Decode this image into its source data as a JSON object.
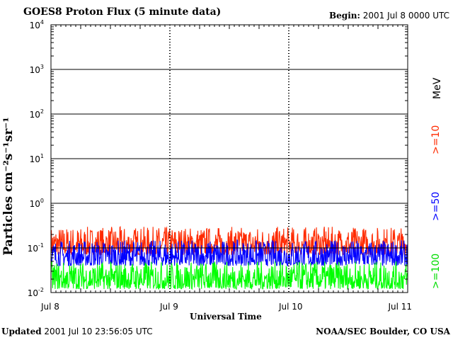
{
  "header": {
    "title": "GOES8 Proton Flux (5 minute data)",
    "begin_label": "Begin:",
    "begin_value": "2001 Jul 8 0000 UTC"
  },
  "footer": {
    "updated_label": "Updated",
    "updated_value": "2001 Jul 10 23:56:05 UTC",
    "credit": "NOAA/SEC Boulder, CO USA"
  },
  "chart_data": {
    "type": "line",
    "xlabel": "Universal Time",
    "ylabel": "Particles cm⁻²s⁻¹sr⁻¹",
    "y_scale": "log",
    "ylim": [
      0.01,
      10000
    ],
    "y_ticks": [
      {
        "base": "10",
        "exp": "4"
      },
      {
        "base": "10",
        "exp": "3"
      },
      {
        "base": "10",
        "exp": "2"
      },
      {
        "base": "10",
        "exp": "1"
      },
      {
        "base": "10",
        "exp": "0"
      },
      {
        "base": "10",
        "exp": "-1"
      },
      {
        "base": "10",
        "exp": "-2"
      }
    ],
    "x_ticks": [
      "Jul 8",
      "Jul 9",
      "Jul 10",
      "Jul 11"
    ],
    "xlim": [
      "2001-07-08",
      "2001-07-11"
    ],
    "grid": true,
    "legend_unit": "MeV",
    "series": [
      {
        "name": ">=10",
        "color": "#ff2a00",
        "typical_range": [
          0.07,
          0.3
        ]
      },
      {
        "name": ">=50",
        "color": "#0000ff",
        "typical_range": [
          0.04,
          0.15
        ]
      },
      {
        "name": ">=100",
        "color": "#00ff00",
        "typical_range": [
          0.012,
          0.05
        ]
      }
    ]
  }
}
